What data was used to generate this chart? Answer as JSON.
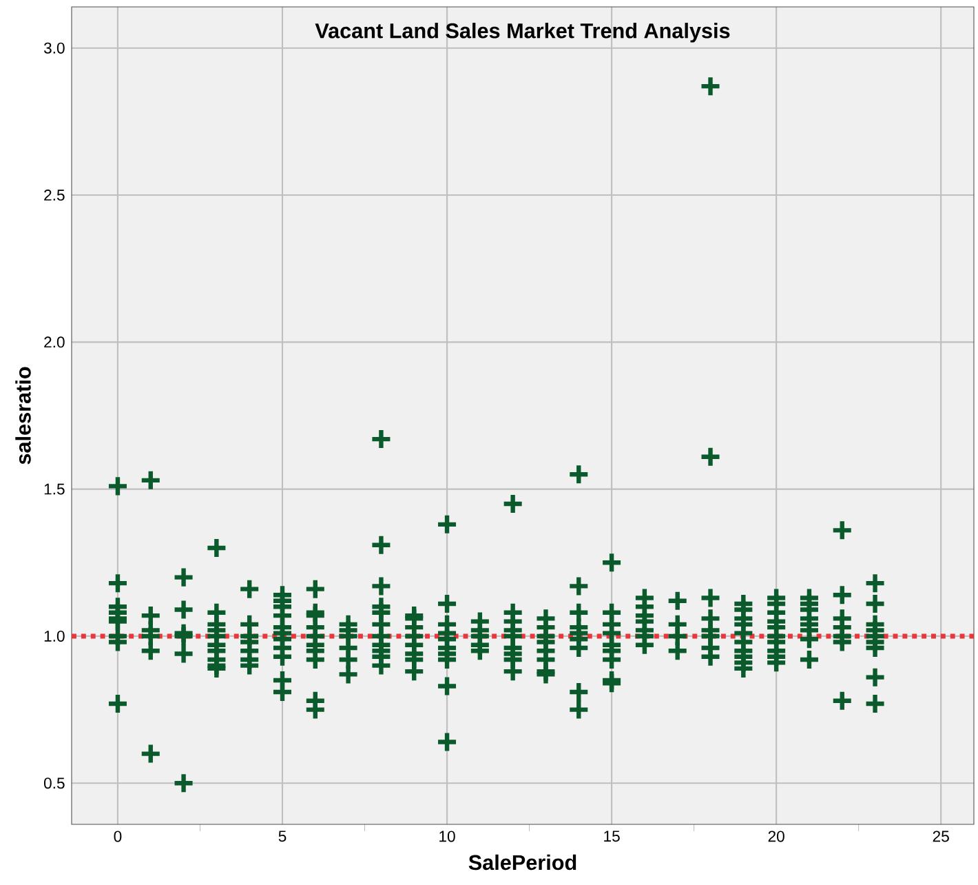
{
  "chart_data": {
    "type": "scatter",
    "title": "Vacant Land Sales Market Trend Analysis",
    "xlabel": "SalePeriod",
    "ylabel": "salesratio",
    "xlim": [
      -1.4,
      26
    ],
    "ylim": [
      0.36,
      3.14
    ],
    "xticks": [
      0,
      {
        "value": 2.5,
        "label": null
      },
      5,
      {
        "value": 7.5,
        "label": null
      },
      10,
      {
        "value": 12.5,
        "label": null
      },
      15,
      {
        "value": 17.5,
        "label": null
      },
      20,
      {
        "value": 22.5,
        "label": null
      },
      25
    ],
    "yticks": [
      {
        "value": 0.5,
        "label": "0.5"
      },
      {
        "value": 1.0,
        "label": "1.0"
      },
      {
        "value": 1.5,
        "label": "1.5"
      },
      {
        "value": 2.0,
        "label": "2.0"
      },
      {
        "value": 2.5,
        "label": "2.5"
      },
      {
        "value": 3.0,
        "label": "3.0"
      }
    ],
    "grid": true,
    "marker": "cross",
    "ref_lines": [
      {
        "axis": "y",
        "value": 1.0,
        "color": "#e8363a",
        "line_style": "dotted"
      }
    ],
    "series": [
      {
        "color": "#0b5a2c",
        "x": [
          0,
          0,
          0,
          0,
          0,
          0,
          0,
          0,
          0,
          1,
          1,
          1,
          1,
          1,
          1,
          2,
          2,
          2,
          2,
          2,
          2,
          3,
          3,
          3,
          3,
          3,
          3,
          3,
          3,
          3,
          3,
          4,
          4,
          4,
          4,
          4,
          4,
          4,
          5,
          5,
          5,
          5,
          5,
          5,
          5,
          5,
          5,
          5,
          5,
          6,
          6,
          6,
          6,
          6,
          6,
          6,
          6,
          6,
          6,
          7,
          7,
          7,
          7,
          7,
          7,
          8,
          8,
          8,
          8,
          8,
          8,
          8,
          8,
          8,
          8,
          8,
          9,
          9,
          9,
          9,
          9,
          9,
          9,
          9,
          10,
          10,
          10,
          10,
          10,
          10,
          10,
          10,
          10,
          10,
          11,
          11,
          11,
          11,
          11,
          12,
          12,
          12,
          12,
          12,
          12,
          12,
          12,
          12,
          13,
          13,
          13,
          13,
          13,
          13,
          13,
          13,
          14,
          14,
          14,
          14,
          14,
          14,
          14,
          14,
          14,
          15,
          15,
          15,
          15,
          15,
          15,
          15,
          15,
          15,
          16,
          16,
          16,
          16,
          16,
          16,
          16,
          17,
          17,
          17,
          17,
          18,
          18,
          18,
          18,
          18,
          18,
          18,
          18,
          19,
          19,
          19,
          19,
          19,
          19,
          19,
          19,
          19,
          19,
          20,
          20,
          20,
          20,
          20,
          20,
          20,
          20,
          20,
          20,
          21,
          21,
          21,
          21,
          21,
          21,
          21,
          21,
          22,
          22,
          22,
          22,
          22,
          22,
          22,
          23,
          23,
          23,
          23,
          23,
          23,
          23,
          23,
          23
        ],
        "values": [
          1.51,
          1.18,
          1.1,
          1.08,
          1.06,
          1.05,
          1.0,
          0.98,
          0.77,
          1.53,
          1.07,
          1.02,
          1.0,
          0.95,
          0.6,
          1.2,
          1.09,
          1.01,
          1.0,
          0.94,
          0.5,
          1.3,
          1.08,
          1.04,
          1.02,
          1.0,
          0.97,
          0.95,
          0.92,
          0.9,
          0.89,
          1.16,
          1.04,
          1.0,
          0.98,
          0.95,
          0.92,
          0.9,
          1.14,
          1.12,
          1.1,
          1.07,
          1.03,
          1.01,
          0.99,
          0.96,
          0.93,
          0.85,
          0.81,
          1.16,
          1.08,
          1.07,
          1.03,
          1.0,
          0.97,
          0.95,
          0.92,
          0.78,
          0.75,
          1.04,
          1.02,
          1.0,
          0.96,
          0.92,
          0.87,
          1.67,
          1.31,
          1.17,
          1.1,
          1.08,
          1.04,
          1.0,
          0.97,
          0.95,
          0.93,
          0.9,
          1.07,
          1.06,
          1.03,
          1.0,
          0.97,
          0.94,
          0.92,
          0.88,
          1.38,
          1.11,
          1.04,
          1.01,
          0.99,
          0.96,
          0.94,
          0.92,
          0.83,
          0.64,
          1.05,
          1.02,
          1.0,
          0.97,
          0.95,
          1.45,
          1.08,
          1.05,
          1.02,
          1.0,
          0.96,
          0.94,
          0.92,
          0.88,
          1.06,
          1.03,
          1.0,
          0.98,
          0.95,
          0.92,
          0.88,
          0.87,
          1.55,
          1.17,
          1.08,
          1.03,
          1.01,
          0.99,
          0.96,
          0.81,
          0.75,
          1.25,
          1.08,
          1.04,
          1.01,
          0.97,
          0.95,
          0.92,
          0.85,
          0.84,
          1.13,
          1.1,
          1.07,
          1.05,
          1.02,
          1.0,
          0.97,
          1.12,
          1.04,
          1.0,
          0.95,
          2.87,
          1.61,
          1.13,
          1.06,
          1.02,
          1.0,
          0.96,
          0.93,
          1.11,
          1.09,
          1.06,
          1.04,
          1.01,
          0.98,
          0.95,
          0.93,
          0.91,
          0.89,
          1.13,
          1.11,
          1.08,
          1.05,
          1.03,
          1.0,
          0.98,
          0.95,
          0.93,
          0.91,
          1.13,
          1.11,
          1.09,
          1.06,
          1.04,
          1.02,
          0.99,
          0.92,
          1.36,
          1.14,
          1.06,
          1.03,
          1.0,
          0.98,
          0.78,
          1.18,
          1.11,
          1.04,
          1.02,
          1.0,
          0.98,
          0.96,
          0.86,
          0.77
        ]
      }
    ]
  }
}
